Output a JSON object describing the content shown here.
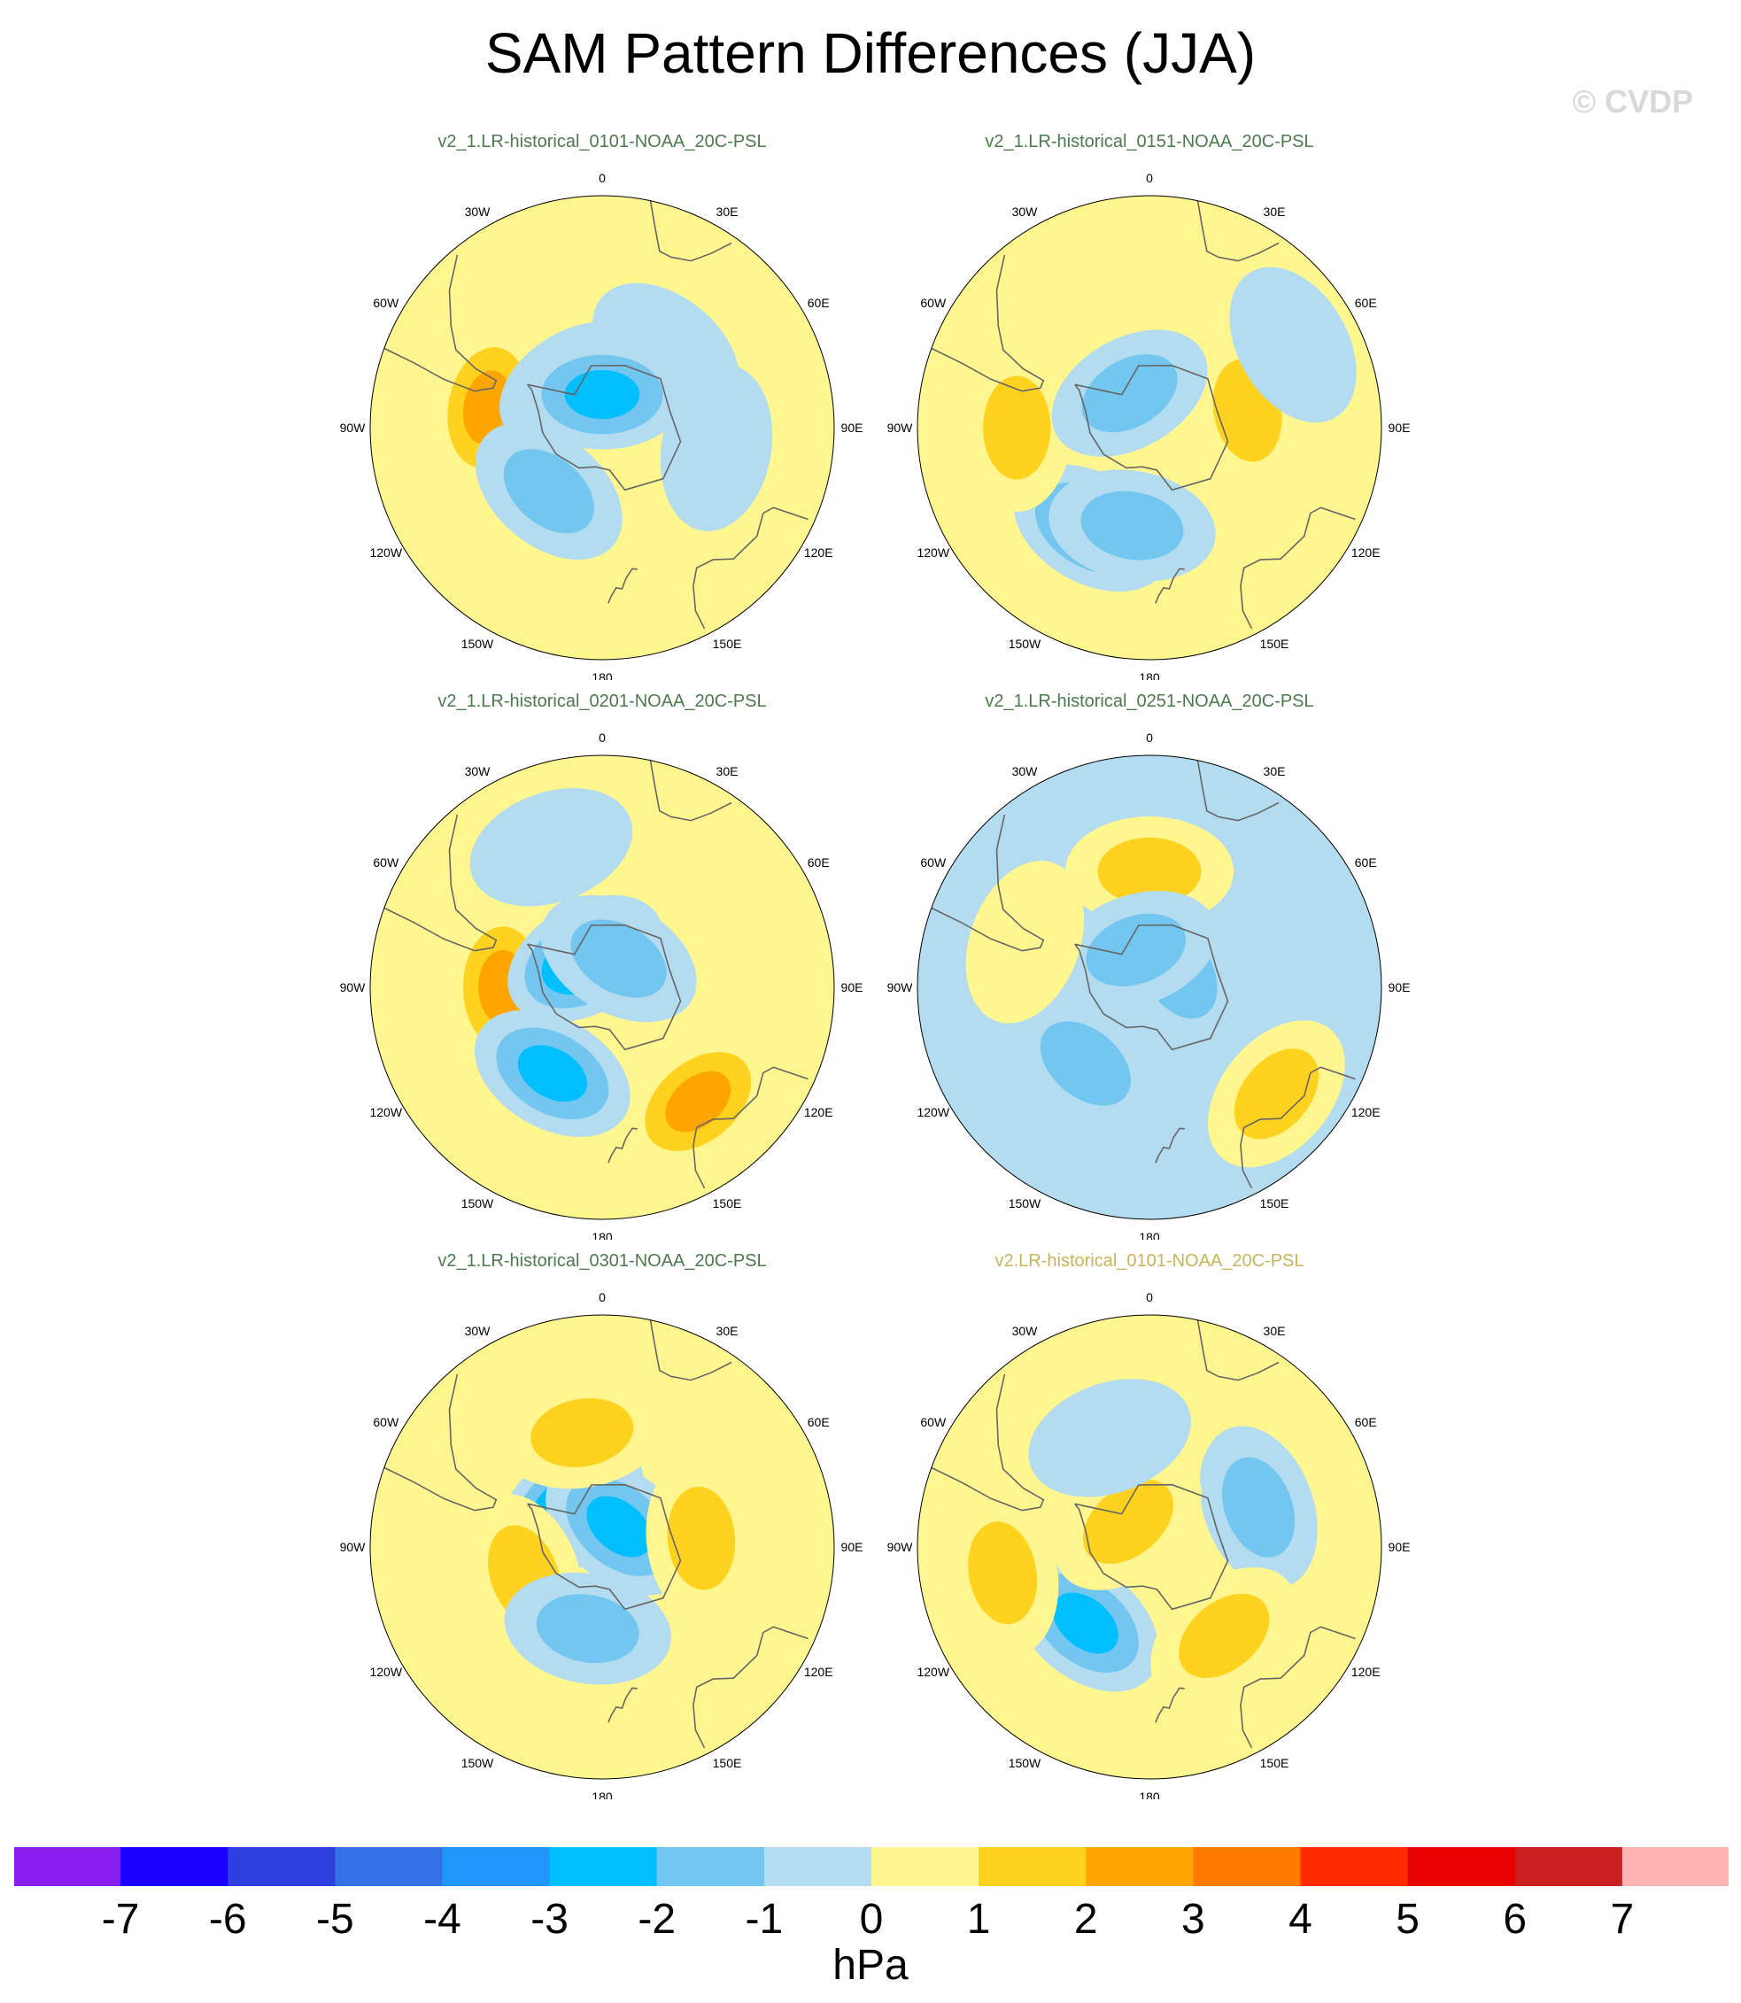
{
  "title": "SAM Pattern Differences (JJA)",
  "watermark": "© CVDP",
  "map_labels": [
    "0",
    "30E",
    "60E",
    "90E",
    "120E",
    "150E",
    "180",
    "150W",
    "120W",
    "90W",
    "60W",
    "30W"
  ],
  "panels": [
    {
      "title": "v2_1.LR-historical_0101-NOAA_20C-PSL",
      "title_color": "#4d7a4d"
    },
    {
      "title": "v2_1.LR-historical_0151-NOAA_20C-PSL",
      "title_color": "#4d7a4d"
    },
    {
      "title": "v2_1.LR-historical_0201-NOAA_20C-PSL",
      "title_color": "#4d7a4d"
    },
    {
      "title": "v2_1.LR-historical_0251-NOAA_20C-PSL",
      "title_color": "#4d7a4d"
    },
    {
      "title": "v2_1.LR-historical_0301-NOAA_20C-PSL",
      "title_color": "#4d7a4d"
    },
    {
      "title": "v2.LR-historical_0101-NOAA_20C-PSL",
      "title_color": "#c8b55a"
    }
  ],
  "colorbar": {
    "units": "hPa",
    "tick_labels": [
      "-7",
      "-6",
      "-5",
      "-4",
      "-3",
      "-2",
      "-1",
      "0",
      "1",
      "2",
      "3",
      "4",
      "5",
      "6",
      "7"
    ],
    "colors": [
      "#8a1ef0",
      "#1a00ff",
      "#2e3fe0",
      "#3470e6",
      "#1f96fa",
      "#00bfff",
      "#73c6f0",
      "#b4dcf0",
      "#fff68f",
      "#ffd21f",
      "#ffa500",
      "#ff7b00",
      "#ff2a00",
      "#e60000",
      "#cc1f1f",
      "#ffb3b3"
    ]
  },
  "chart_data": {
    "type": "heatmap",
    "projection": "south polar stereographic",
    "variable": "PSL difference",
    "units": "hPa",
    "levels": [
      -7,
      -6,
      -5,
      -4,
      -3,
      -2,
      -1,
      0,
      1,
      2,
      3,
      4,
      5,
      6,
      7
    ],
    "panels": [
      {
        "name": "v2_1.LR-historical_0101-NOAA_20C-PSL",
        "background": 0.5,
        "features": [
          {
            "lon": -80,
            "lat": -55,
            "value": 2.5
          },
          {
            "lon": -30,
            "lat": -75,
            "value": -1.5
          },
          {
            "lon": 40,
            "lat": -60,
            "value": -0.5
          },
          {
            "lon": 100,
            "lat": -55,
            "value": -0.5
          },
          {
            "lon": -140,
            "lat": -65,
            "value": -1.5
          },
          {
            "lon": 0,
            "lat": -80,
            "value": -2.5
          }
        ]
      },
      {
        "name": "v2_1.LR-historical_0151-NOAA_20C-PSL",
        "background": 0.5,
        "features": [
          {
            "lon": -150,
            "lat": -55,
            "value": -3.0
          },
          {
            "lon": 80,
            "lat": -60,
            "value": 1.5
          },
          {
            "lon": -90,
            "lat": -50,
            "value": 1.5
          },
          {
            "lon": 60,
            "lat": -40,
            "value": -0.5
          },
          {
            "lon": -30,
            "lat": -78,
            "value": -2.0
          },
          {
            "lon": -170,
            "lat": -60,
            "value": -1.5
          }
        ]
      },
      {
        "name": "v2_1.LR-historical_0201-NOAA_20C-PSL",
        "background": 0.5,
        "features": [
          {
            "lon": -90,
            "lat": -60,
            "value": 2.5
          },
          {
            "lon": 140,
            "lat": -45,
            "value": 3.0
          },
          {
            "lon": -150,
            "lat": -60,
            "value": -3.0
          },
          {
            "lon": -30,
            "lat": -80,
            "value": -3.5
          },
          {
            "lon": 30,
            "lat": -80,
            "value": -2.0
          },
          {
            "lon": -20,
            "lat": -45,
            "value": -0.5
          }
        ]
      },
      {
        "name": "v2_1.LR-historical_0251-NOAA_20C-PSL",
        "background": -0.5,
        "features": [
          {
            "lon": 130,
            "lat": -40,
            "value": 1.5
          },
          {
            "lon": 0,
            "lat": -55,
            "value": 1.5
          },
          {
            "lon": 60,
            "lat": -80,
            "value": -2.0
          },
          {
            "lon": -20,
            "lat": -78,
            "value": -1.5
          },
          {
            "lon": -140,
            "lat": -60,
            "value": -1.5
          },
          {
            "lon": -70,
            "lat": -50,
            "value": 0.5
          }
        ]
      },
      {
        "name": "v2_1.LR-historical_0301-NOAA_20C-PSL",
        "background": 0.5,
        "features": [
          {
            "lon": -40,
            "lat": -75,
            "value": -3.5
          },
          {
            "lon": 40,
            "lat": -82,
            "value": -3.0
          },
          {
            "lon": 85,
            "lat": -60,
            "value": 1.5
          },
          {
            "lon": -110,
            "lat": -65,
            "value": 1.5
          },
          {
            "lon": -10,
            "lat": -55,
            "value": 1.5
          },
          {
            "lon": -170,
            "lat": -65,
            "value": -2.0
          }
        ]
      },
      {
        "name": "v2.LR-historical_0101-NOAA_20C-PSL",
        "background": 0.5,
        "features": [
          {
            "lon": -140,
            "lat": -60,
            "value": -3.0
          },
          {
            "lon": 70,
            "lat": -55,
            "value": -1.5
          },
          {
            "lon": 140,
            "lat": -55,
            "value": 1.5
          },
          {
            "lon": -100,
            "lat": -45,
            "value": 1.5
          },
          {
            "lon": -40,
            "lat": -80,
            "value": 1.5
          },
          {
            "lon": -20,
            "lat": -55,
            "value": -0.5
          }
        ]
      }
    ]
  }
}
